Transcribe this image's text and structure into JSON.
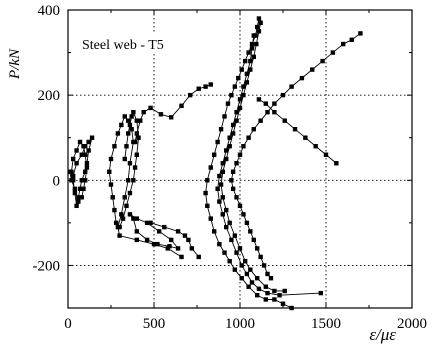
{
  "colors": {
    "series": "#000000",
    "grid": "#000000",
    "background": "#ffffff"
  },
  "chart_data": {
    "type": "scatter",
    "title": "",
    "xlabel": "ε/με",
    "ylabel": "P/kN",
    "annotation": "Steel web - T5",
    "xlim": [
      0,
      2000
    ],
    "ylim": [
      -300,
      400
    ],
    "x_ticks": [
      0,
      500,
      1000,
      1500,
      2000
    ],
    "x_tick_labels": [
      "0",
      "500",
      "1000",
      "1500",
      "2000"
    ],
    "y_ticks": [
      -200,
      0,
      200,
      400
    ],
    "y_tick_labels": [
      "-200",
      "0",
      "200",
      "400"
    ],
    "grid": true,
    "grid_style": "dotted",
    "marker": "square",
    "series": [
      {
        "values": [
          [
            30,
            10
          ],
          [
            50,
            40
          ],
          [
            80,
            60
          ],
          [
            100,
            80
          ],
          [
            120,
            90
          ],
          [
            140,
            100
          ],
          [
            120,
            70
          ],
          [
            110,
            40
          ],
          [
            100,
            20
          ],
          [
            80,
            0
          ],
          [
            70,
            -20
          ],
          [
            60,
            -40
          ],
          [
            50,
            -60
          ],
          [
            40,
            -30
          ],
          [
            30,
            0
          ],
          [
            20,
            20
          ],
          [
            30,
            50
          ],
          [
            50,
            70
          ],
          [
            70,
            90
          ],
          [
            90,
            80
          ],
          [
            100,
            60
          ],
          [
            110,
            30
          ],
          [
            100,
            0
          ],
          [
            90,
            -20
          ],
          [
            80,
            -40
          ],
          [
            60,
            -50
          ],
          [
            40,
            -20
          ],
          [
            20,
            0
          ],
          [
            10,
            20
          ]
        ]
      },
      {
        "values": [
          [
            330,
            50
          ],
          [
            340,
            80
          ],
          [
            350,
            110
          ],
          [
            360,
            130
          ],
          [
            370,
            150
          ],
          [
            380,
            160
          ],
          [
            400,
            140
          ],
          [
            410,
            100
          ],
          [
            400,
            60
          ],
          [
            390,
            30
          ],
          [
            380,
            0
          ],
          [
            360,
            -30
          ],
          [
            340,
            -60
          ],
          [
            320,
            -90
          ],
          [
            300,
            -110
          ],
          [
            280,
            -100
          ],
          [
            270,
            -70
          ],
          [
            260,
            -40
          ],
          [
            250,
            -10
          ],
          [
            240,
            20
          ],
          [
            250,
            50
          ],
          [
            270,
            80
          ],
          [
            290,
            110
          ],
          [
            310,
            130
          ],
          [
            330,
            150
          ],
          [
            350,
            140
          ],
          [
            370,
            120
          ],
          [
            380,
            90
          ],
          [
            360,
            40
          ],
          [
            350,
            0
          ],
          [
            330,
            -40
          ],
          [
            310,
            -80
          ],
          [
            290,
            -110
          ],
          [
            300,
            -130
          ],
          [
            400,
            -140
          ],
          [
            500,
            -150
          ],
          [
            580,
            -160
          ],
          [
            660,
            -180
          ]
        ]
      },
      {
        "values": [
          [
            390,
            90
          ],
          [
            400,
            110
          ],
          [
            420,
            140
          ],
          [
            440,
            160
          ],
          [
            480,
            170
          ],
          [
            540,
            155
          ],
          [
            600,
            148
          ],
          [
            660,
            175
          ],
          [
            710,
            200
          ],
          [
            760,
            215
          ],
          [
            800,
            220
          ],
          [
            830,
            225
          ]
        ]
      },
      {
        "values": [
          [
            380,
            -90
          ],
          [
            400,
            -120
          ],
          [
            460,
            -140
          ],
          [
            520,
            -150
          ],
          [
            590,
            -155
          ],
          [
            640,
            -160
          ],
          [
            600,
            -140
          ],
          [
            530,
            -120
          ],
          [
            460,
            -100
          ],
          [
            400,
            -90
          ],
          [
            360,
            -80
          ]
        ]
      },
      {
        "values": [
          [
            760,
            -180
          ],
          [
            720,
            -160
          ],
          [
            700,
            -140
          ],
          [
            680,
            -130
          ],
          [
            640,
            -120
          ],
          [
            560,
            -110
          ],
          [
            480,
            -100
          ]
        ]
      },
      {
        "values": [
          [
            1110,
            380
          ],
          [
            1100,
            360
          ],
          [
            1090,
            340
          ],
          [
            1070,
            320
          ],
          [
            1050,
            300
          ],
          [
            1030,
            280
          ],
          [
            1010,
            260
          ],
          [
            990,
            240
          ],
          [
            970,
            220
          ],
          [
            950,
            200
          ],
          [
            930,
            180
          ],
          [
            910,
            150
          ],
          [
            890,
            120
          ],
          [
            870,
            90
          ],
          [
            850,
            60
          ],
          [
            830,
            30
          ],
          [
            810,
            0
          ],
          [
            800,
            -30
          ],
          [
            810,
            -60
          ],
          [
            830,
            -90
          ],
          [
            850,
            -120
          ],
          [
            880,
            -150
          ],
          [
            910,
            -170
          ],
          [
            940,
            -190
          ],
          [
            970,
            -210
          ],
          [
            1010,
            -230
          ],
          [
            1050,
            -250
          ],
          [
            1100,
            -270
          ],
          [
            1150,
            -280
          ],
          [
            1200,
            -280
          ],
          [
            1250,
            -290
          ],
          [
            1300,
            -300
          ]
        ]
      },
      {
        "values": [
          [
            1120,
            370
          ],
          [
            1110,
            350
          ],
          [
            1095,
            320
          ],
          [
            1080,
            290
          ],
          [
            1060,
            260
          ],
          [
            1040,
            230
          ],
          [
            1020,
            200
          ],
          [
            1000,
            170
          ],
          [
            980,
            140
          ],
          [
            960,
            110
          ],
          [
            940,
            80
          ],
          [
            920,
            50
          ],
          [
            900,
            20
          ],
          [
            890,
            -10
          ],
          [
            900,
            -40
          ],
          [
            920,
            -70
          ],
          [
            940,
            -100
          ],
          [
            970,
            -130
          ],
          [
            1000,
            -160
          ],
          [
            1030,
            -190
          ],
          [
            1060,
            -210
          ],
          [
            1100,
            -230
          ],
          [
            1150,
            -250
          ],
          [
            1200,
            -260
          ],
          [
            1260,
            -260
          ]
        ]
      },
      {
        "values": [
          [
            1080,
            340
          ],
          [
            1070,
            310
          ],
          [
            1060,
            280
          ],
          [
            1040,
            250
          ],
          [
            1020,
            220
          ],
          [
            1000,
            190
          ],
          [
            980,
            160
          ],
          [
            960,
            130
          ],
          [
            940,
            100
          ],
          [
            920,
            70
          ],
          [
            900,
            40
          ],
          [
            880,
            10
          ],
          [
            870,
            -20
          ],
          [
            880,
            -50
          ],
          [
            900,
            -80
          ],
          [
            920,
            -110
          ],
          [
            950,
            -140
          ],
          [
            980,
            -170
          ],
          [
            1010,
            -200
          ],
          [
            1040,
            -220
          ],
          [
            1070,
            -240
          ],
          [
            1110,
            -255
          ],
          [
            1160,
            -265
          ],
          [
            1230,
            -270
          ],
          [
            1470,
            -265
          ]
        ]
      },
      {
        "values": [
          [
            1700,
            345
          ],
          [
            1650,
            330
          ],
          [
            1600,
            320
          ],
          [
            1540,
            300
          ],
          [
            1480,
            280
          ],
          [
            1420,
            260
          ],
          [
            1360,
            240
          ],
          [
            1300,
            220
          ],
          [
            1250,
            200
          ],
          [
            1200,
            180
          ],
          [
            1160,
            160
          ],
          [
            1120,
            140
          ],
          [
            1080,
            120
          ],
          [
            1050,
            100
          ],
          [
            1020,
            80
          ],
          [
            1000,
            60
          ],
          [
            980,
            40
          ],
          [
            960,
            20
          ],
          [
            950,
            0
          ],
          [
            960,
            -20
          ],
          [
            980,
            -40
          ],
          [
            1000,
            -60
          ],
          [
            1020,
            -80
          ],
          [
            1040,
            -100
          ],
          [
            1060,
            -120
          ],
          [
            1080,
            -140
          ],
          [
            1100,
            -160
          ],
          [
            1120,
            -180
          ],
          [
            1140,
            -200
          ],
          [
            1160,
            -220
          ],
          [
            1180,
            -230
          ]
        ]
      },
      {
        "values": [
          [
            1560,
            40
          ],
          [
            1500,
            60
          ],
          [
            1440,
            80
          ],
          [
            1380,
            100
          ],
          [
            1320,
            120
          ],
          [
            1260,
            140
          ],
          [
            1200,
            160
          ],
          [
            1150,
            180
          ],
          [
            1110,
            190
          ]
        ]
      }
    ]
  }
}
